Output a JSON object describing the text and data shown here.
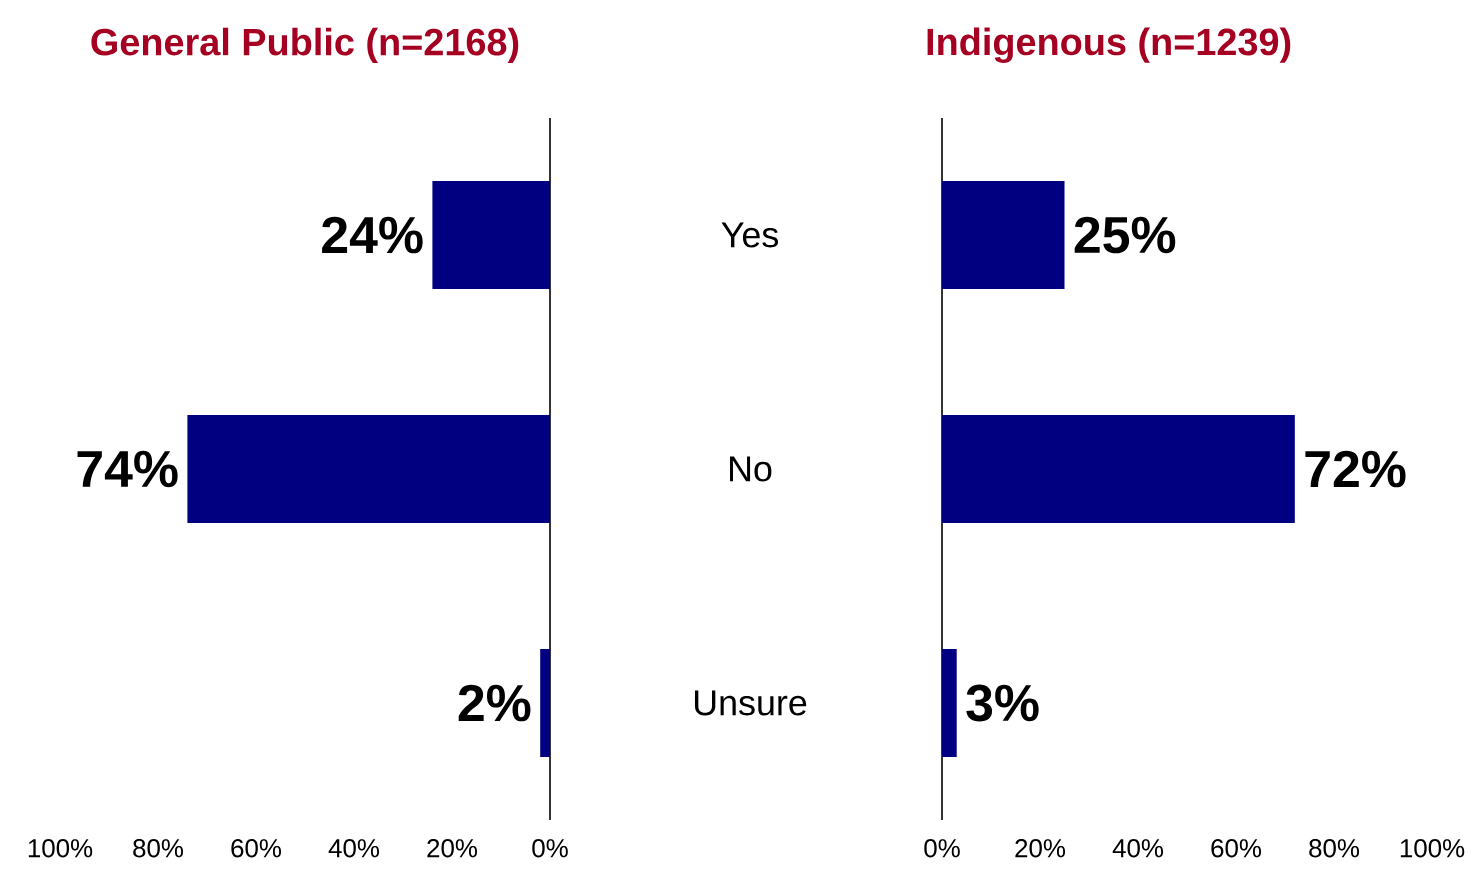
{
  "chart_data": [
    {
      "type": "bar",
      "orientation": "horizontal",
      "title": "General Public **(n=2168)**",
      "categories": [
        null,
        null,
        null
      ],
      "values": [
        24,
        74,
        2
      ],
      "color": "#000080",
      "value_labels": [
        "24%",
        "74%",
        "2%"
      ],
      "xlim": [
        100,
        0
      ],
      "xticks": [
        {
          "value": 100,
          "label": "100%"
        },
        {
          "value": 80,
          "label": "80%"
        },
        {
          "value": 60,
          "label": "60%"
        },
        {
          "value": 40,
          "label": "40%"
        },
        {
          "value": 20,
          "label": "20%"
        },
        {
          "value": 0,
          "label": "0%"
        }
      ],
      "tick_labels": "x"
    },
    {
      "type": "bar",
      "orientation": "horizontal",
      "title": "Indigenous **(n=1239)**",
      "categories": [
        "Yes",
        "No",
        "Unsure"
      ],
      "values": [
        25,
        72,
        3
      ],
      "color": "#000080",
      "value_labels": [
        "25%",
        "72%",
        "3%"
      ],
      "xlim": [
        0,
        100
      ],
      "xticks": [
        {
          "value": 0,
          "label": "0%"
        },
        {
          "value": 20,
          "label": "20%"
        },
        {
          "value": 40,
          "label": "40%"
        },
        {
          "value": 60,
          "label": "60%"
        },
        {
          "value": 80,
          "label": "80%"
        },
        {
          "value": 100,
          "label": "100%"
        }
      ]
    }
  ]
}
